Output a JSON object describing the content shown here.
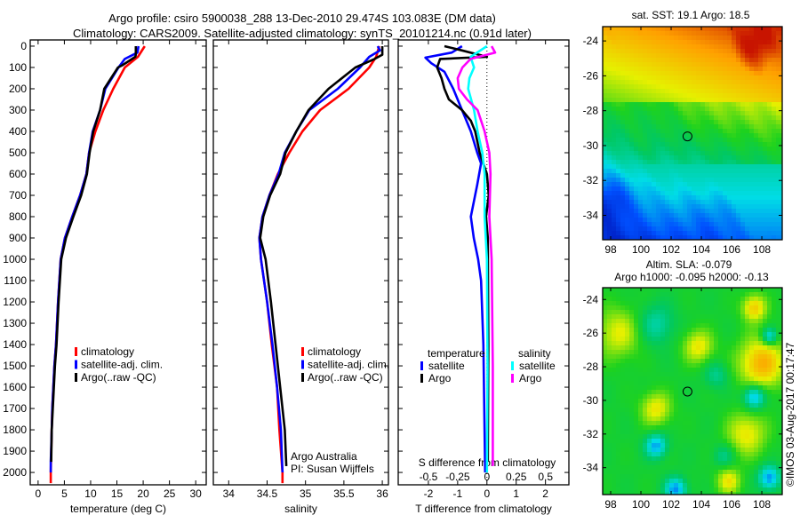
{
  "title": {
    "line1": "Argo profile: csiro 5900038_288 13-Dec-2010 29.474S 103.083E (DM data)",
    "line2": "Climatology: CARS2009. Satellite-adjusted climatology: synTS_20101214.nc (0.91d later)"
  },
  "colors": {
    "climatology": "#ff0000",
    "satellite": "#0000ff",
    "argo": "#000000",
    "sal_satellite": "#00ffff",
    "sal_argo": "#ff00ff"
  },
  "credit": {
    "line1": "Argo Australia",
    "line2": "PI: Susan Wijffels"
  },
  "copyright": "©IMOS 03-Aug-2017 00:17:47",
  "chart_data": [
    {
      "type": "line",
      "id": "temperature",
      "xlabel": "temperature (deg C)",
      "ylabel": "",
      "xlim": [
        -1.5,
        32
      ],
      "ylim": [
        2058,
        -29
      ],
      "xticks": [
        0,
        5,
        10,
        15,
        20,
        25,
        30
      ],
      "yticks": [
        0,
        100,
        200,
        300,
        400,
        500,
        600,
        700,
        800,
        900,
        1000,
        1100,
        1200,
        1300,
        1400,
        1500,
        1600,
        1700,
        1800,
        1900,
        2000
      ],
      "legend": {
        "placement": "middle-left",
        "entries": [
          "climatology",
          "satellite-adj. clim.",
          "Argo(..raw -QC)"
        ]
      },
      "series": [
        {
          "name": "climatology",
          "color": "#ff0000",
          "depth": [
            0,
            50,
            100,
            200,
            300,
            400,
            500,
            600,
            700,
            800,
            900,
            1000,
            1200,
            1400,
            1500,
            1700,
            1800,
            2000,
            2050
          ],
          "values": [
            20.3,
            19.0,
            16.5,
            14.3,
            12.4,
            10.9,
            9.7,
            9.2,
            8.0,
            6.5,
            5.1,
            4.3,
            3.8,
            3.4,
            3.1,
            2.7,
            2.6,
            2.4,
            2.4
          ]
        },
        {
          "name": "satellite-adj. clim.",
          "color": "#0000ff",
          "depth": [
            0,
            30,
            60,
            100,
            200,
            300,
            400,
            500,
            600,
            700,
            800,
            900,
            1000,
            1200,
            1400,
            1500,
            1700,
            1800,
            1950,
            2000
          ],
          "values": [
            19.1,
            18.9,
            16.5,
            15.3,
            12.8,
            11.8,
            10.4,
            9.7,
            9.2,
            8.0,
            6.5,
            5.1,
            4.3,
            3.8,
            3.4,
            3.1,
            2.7,
            2.6,
            2.4,
            2.4
          ]
        },
        {
          "name": "Argo(..raw -QC)",
          "color": "#000000",
          "depth": [
            0,
            40,
            50,
            90,
            100,
            200,
            300,
            400,
            500,
            600,
            700,
            800,
            900,
            1000,
            1200,
            1400,
            1500,
            1700,
            1800,
            1950
          ],
          "values": [
            18.6,
            18.6,
            18.5,
            16.0,
            15.2,
            12.6,
            11.8,
            10.5,
            9.8,
            9.3,
            8.2,
            6.7,
            5.3,
            4.4,
            3.9,
            3.5,
            3.2,
            2.8,
            2.6,
            2.5
          ]
        }
      ]
    },
    {
      "type": "line",
      "id": "salinity",
      "xlabel": "salinity",
      "ylabel": "",
      "xlim": [
        33.8,
        36.08
      ],
      "ylim": [
        2058,
        -29
      ],
      "xticks": [
        34,
        34.5,
        35,
        35.5,
        36
      ],
      "legend": {
        "placement": "middle-right",
        "entries": [
          "climatology",
          "satellite-adj. clim.",
          "Argo(..raw -QC)"
        ]
      },
      "series": [
        {
          "name": "climatology",
          "color": "#ff0000",
          "depth": [
            0,
            50,
            100,
            200,
            300,
            400,
            500,
            600,
            700,
            800,
            900,
            1000,
            1200,
            1400,
            1600,
            1800,
            2000,
            2050
          ],
          "values": [
            35.96,
            35.92,
            35.83,
            35.56,
            35.19,
            34.96,
            34.79,
            34.64,
            34.53,
            34.44,
            34.4,
            34.42,
            34.5,
            34.56,
            34.63,
            34.66,
            34.7,
            34.7
          ]
        },
        {
          "name": "satellite-adj. clim.",
          "color": "#0000ff",
          "depth": [
            0,
            20,
            50,
            100,
            200,
            300,
            400,
            500,
            600,
            700,
            800,
            900,
            1000,
            1200,
            1400,
            1600,
            1800,
            2000
          ],
          "values": [
            35.94,
            35.97,
            35.83,
            35.71,
            35.42,
            35.05,
            34.88,
            34.73,
            34.65,
            34.53,
            34.44,
            34.4,
            34.42,
            34.5,
            34.57,
            34.63,
            34.68,
            34.7
          ]
        },
        {
          "name": "Argo(..raw -QC)",
          "color": "#000000",
          "depth": [
            0,
            40,
            60,
            100,
            200,
            300,
            400,
            500,
            600,
            700,
            800,
            900,
            1000,
            1200,
            1400,
            1600,
            1800,
            1970
          ],
          "values": [
            36.0,
            36.0,
            35.9,
            35.65,
            35.3,
            35.04,
            34.88,
            34.74,
            34.67,
            34.54,
            34.45,
            34.41,
            34.48,
            34.55,
            34.61,
            34.67,
            34.73,
            34.75
          ]
        }
      ]
    },
    {
      "type": "line",
      "id": "differences",
      "xlabel": "T difference from climatology",
      "x2label": "S difference from climatology",
      "xlim": [
        -3.03,
        2.8
      ],
      "x2lim": [
        -0.758,
        0.7
      ],
      "ylim": [
        2058,
        -29
      ],
      "xticks": [
        -2,
        -1,
        0,
        1,
        2
      ],
      "x2ticks": [
        -0.5,
        -0.25,
        0,
        0.25,
        0.5
      ],
      "legend": {
        "placement": "bottom-center",
        "groups": [
          {
            "title": "temperature",
            "entries": [
              "satellite",
              "Argo"
            ]
          },
          {
            "title": "salinity",
            "entries": [
              "satellite",
              "Argo"
            ]
          }
        ]
      },
      "series": [
        {
          "name": "temperature satellite",
          "axis": "T",
          "color": "#0000ff",
          "depth": [
            0,
            30,
            54,
            80,
            120,
            200,
            300,
            400,
            500,
            550,
            650,
            800,
            900,
            1000,
            1100,
            1400,
            2000
          ],
          "values": [
            -0.85,
            -1.2,
            -2.1,
            -1.9,
            -1.45,
            -1.15,
            -0.85,
            -0.55,
            -0.33,
            -0.2,
            -0.33,
            -0.55,
            -0.45,
            -0.3,
            -0.2,
            -0.12,
            -0.06
          ]
        },
        {
          "name": "temperature Argo",
          "axis": "T",
          "color": "#000000",
          "depth": [
            0,
            20,
            50,
            60,
            100,
            150,
            200,
            250,
            300,
            350,
            400,
            500,
            600,
            700,
            800,
            900,
            1400,
            1950
          ],
          "values": [
            -1.45,
            -0.85,
            0.0,
            -1.6,
            -1.7,
            -1.55,
            -1.45,
            -1.3,
            -0.85,
            -0.55,
            -0.4,
            -0.25,
            0.0,
            0.06,
            -0.03,
            0.03,
            0.05,
            0.03
          ]
        },
        {
          "name": "salinity satellite",
          "axis": "S",
          "color": "#00ffff",
          "depth": [
            0,
            50,
            100,
            150,
            200,
            300,
            400,
            500,
            600,
            800,
            1000,
            1500,
            2000
          ],
          "values": [
            0.0,
            -0.14,
            -0.11,
            -0.15,
            -0.16,
            -0.11,
            -0.08,
            -0.04,
            -0.02,
            -0.02,
            0.0,
            0.005,
            0.0
          ]
        },
        {
          "name": "salinity Argo",
          "axis": "S",
          "color": "#ff00ff",
          "depth": [
            0,
            30,
            60,
            100,
            150,
            200,
            250,
            300,
            400,
            500,
            600,
            800,
            1000,
            1500,
            1970
          ],
          "values": [
            0.04,
            0.07,
            -0.14,
            -0.21,
            -0.25,
            -0.24,
            -0.17,
            -0.08,
            -0.02,
            0.02,
            0.03,
            0.02,
            0.04,
            0.05,
            0.05
          ]
        }
      ]
    },
    {
      "type": "heatmap",
      "id": "sst-map",
      "title": "sat. SST: 19.1 Argo: 18.5",
      "xlim": [
        97.47,
        109.35
      ],
      "ylim": [
        -35.4,
        -23.18
      ],
      "xticks": [
        98,
        100,
        102,
        104,
        106,
        108
      ],
      "yticks": [
        -24,
        -26,
        -28,
        -30,
        -32,
        -34
      ],
      "marker": {
        "lon": 103.083,
        "lat": -29.474
      }
    },
    {
      "type": "heatmap",
      "id": "sla-map",
      "title": "Altim. SLA: -0.079",
      "subtitle": "Argo h1000: -0.095 h2000: -0.13",
      "xlim": [
        97.47,
        109.35
      ],
      "ylim": [
        -35.6,
        -23.3
      ],
      "xticks": [
        98,
        100,
        102,
        104,
        106,
        108
      ],
      "yticks": [
        -24,
        -26,
        -28,
        -30,
        -32,
        -34
      ],
      "marker": {
        "lon": 103.083,
        "lat": -29.474
      }
    }
  ]
}
